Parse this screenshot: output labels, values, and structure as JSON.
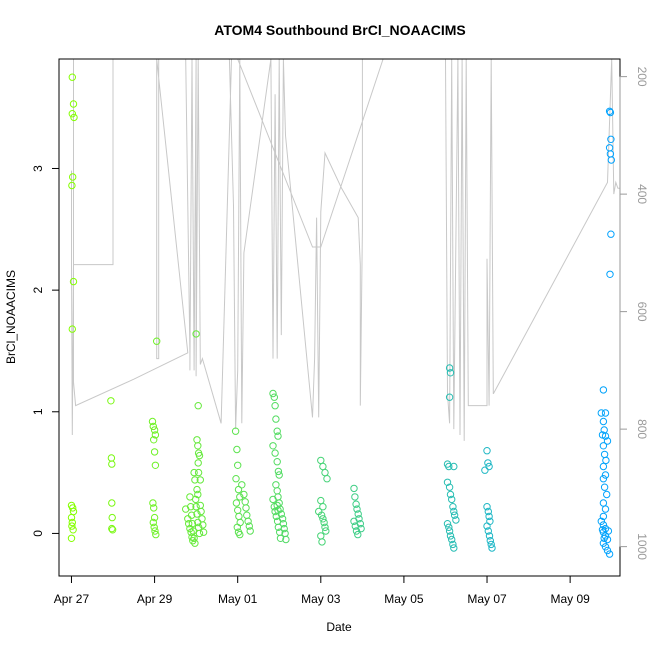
{
  "chart_data": {
    "type": "scatter",
    "title": "ATOM4 Southbound BrCl_NOAACIMS",
    "xlabel": "Date",
    "ylabel": "BrCl_NOAACIMS",
    "xlim": [
      -0.3,
      13.2
    ],
    "ylim": [
      -0.35,
      3.9
    ],
    "x_unit": "days since Apr 27",
    "x_ticks": [
      {
        "value": 0,
        "label": "Apr 27"
      },
      {
        "value": 2,
        "label": "Apr 29"
      },
      {
        "value": 4,
        "label": "May 01"
      },
      {
        "value": 6,
        "label": "May 03"
      },
      {
        "value": 8,
        "label": "May 05"
      },
      {
        "value": 10,
        "label": "May 07"
      },
      {
        "value": 12,
        "label": "May 09"
      }
    ],
    "y_ticks": [
      {
        "value": 0,
        "label": "0"
      },
      {
        "value": 1,
        "label": "1"
      },
      {
        "value": 2,
        "label": "2"
      },
      {
        "value": 3,
        "label": "3"
      }
    ],
    "right_axis": {
      "description": "altitude / pressure trace (grey line), inverted axis",
      "range": [
        1050,
        170
      ],
      "ticks": [
        {
          "value": 200,
          "label": "200"
        },
        {
          "value": 400,
          "label": "400"
        },
        {
          "value": 600,
          "label": "600"
        },
        {
          "value": 800,
          "label": "800"
        },
        {
          "value": 1000,
          "label": "1000"
        }
      ]
    },
    "color_scale": {
      "start": "#84ff00",
      "end": "#00a2ff"
    },
    "trace_color": "#c8c8c8",
    "trace": [
      [
        0.0,
        360
      ],
      [
        0.0,
        520
      ],
      [
        0.02,
        810
      ],
      [
        0.05,
        520
      ],
      [
        0.3,
        520
      ],
      [
        0.9,
        520
      ],
      [
        1.0,
        520
      ],
      [
        1.0,
        170
      ],
      [
        0.05,
        170
      ],
      [
        0.05,
        720
      ],
      [
        0.1,
        760
      ],
      [
        1.5,
        715
      ],
      [
        2.8,
        670
      ],
      [
        2.05,
        170
      ],
      [
        2.05,
        680
      ],
      [
        2.1,
        680
      ],
      [
        2.1,
        170
      ],
      [
        2.75,
        170
      ],
      [
        2.85,
        670
      ],
      [
        2.85,
        700
      ],
      [
        2.9,
        170
      ],
      [
        2.95,
        700
      ],
      [
        3.0,
        170
      ],
      [
        3.0,
        710
      ],
      [
        3.05,
        170
      ],
      [
        3.1,
        690
      ],
      [
        3.15,
        680
      ],
      [
        3.6,
        790
      ],
      [
        3.85,
        170
      ],
      [
        3.8,
        170
      ],
      [
        3.9,
        420
      ],
      [
        3.95,
        800
      ],
      [
        4.0,
        700
      ],
      [
        4.05,
        170
      ],
      [
        4.1,
        790
      ],
      [
        4.15,
        500
      ],
      [
        4.8,
        170
      ],
      [
        4.85,
        680
      ],
      [
        4.9,
        230
      ],
      [
        4.95,
        680
      ],
      [
        5.0,
        170
      ],
      [
        5.05,
        640
      ],
      [
        5.1,
        170
      ],
      [
        5.15,
        300
      ],
      [
        5.8,
        780
      ],
      [
        5.85,
        680
      ],
      [
        5.9,
        440
      ],
      [
        5.95,
        780
      ],
      [
        6.0,
        430
      ],
      [
        6.1,
        330
      ],
      [
        6.5,
        390
      ],
      [
        6.9,
        440
      ],
      [
        6.95,
        520
      ],
      [
        6.95,
        760
      ],
      [
        7.0,
        460
      ],
      [
        7.0,
        170
      ],
      [
        4.0,
        170
      ],
      [
        5.8,
        490
      ],
      [
        6.0,
        490
      ],
      [
        7.5,
        170
      ],
      [
        10.1,
        170
      ],
      [
        9.0,
        170
      ],
      [
        9.05,
        740
      ],
      [
        9.1,
        790
      ],
      [
        9.15,
        170
      ],
      [
        9.2,
        800
      ],
      [
        9.3,
        170
      ],
      [
        9.35,
        810
      ],
      [
        9.4,
        170
      ],
      [
        9.45,
        820
      ],
      [
        9.5,
        170
      ],
      [
        9.55,
        760
      ],
      [
        10.0,
        760
      ],
      [
        10.0,
        510
      ],
      [
        10.05,
        760
      ],
      [
        10.1,
        170
      ],
      [
        10.15,
        740
      ],
      [
        12.9,
        380
      ],
      [
        13.0,
        170
      ],
      [
        13.05,
        400
      ],
      [
        13.1,
        380
      ],
      [
        13.15,
        390
      ],
      [
        13.2,
        390
      ]
    ],
    "series": [
      {
        "name": "BrCl_NOAACIMS",
        "points": [
          [
            0.02,
            3.75
          ],
          [
            0.05,
            3.53
          ],
          [
            0.02,
            3.45
          ],
          [
            0.06,
            3.42
          ],
          [
            0.03,
            2.93
          ],
          [
            0.01,
            2.86
          ],
          [
            0.05,
            2.07
          ],
          [
            0.02,
            1.68
          ],
          [
            0.0,
            0.23
          ],
          [
            0.03,
            0.21
          ],
          [
            0.05,
            0.18
          ],
          [
            0.0,
            0.13
          ],
          [
            0.02,
            0.09
          ],
          [
            0.01,
            0.06
          ],
          [
            0.04,
            0.03
          ],
          [
            0.0,
            -0.04
          ],
          [
            0.95,
            1.09
          ],
          [
            0.96,
            0.62
          ],
          [
            0.97,
            0.57
          ],
          [
            0.97,
            0.25
          ],
          [
            0.98,
            0.13
          ],
          [
            0.97,
            0.04
          ],
          [
            0.99,
            0.03
          ],
          [
            2.05,
            1.58
          ],
          [
            1.95,
            0.92
          ],
          [
            1.97,
            0.88
          ],
          [
            2.0,
            0.85
          ],
          [
            2.02,
            0.81
          ],
          [
            1.98,
            0.77
          ],
          [
            2.0,
            0.67
          ],
          [
            2.02,
            0.56
          ],
          [
            1.96,
            0.25
          ],
          [
            1.98,
            0.21
          ],
          [
            2.0,
            0.13
          ],
          [
            1.97,
            0.09
          ],
          [
            1.99,
            0.05
          ],
          [
            2.01,
            0.02
          ],
          [
            2.03,
            -0.01
          ],
          [
            2.75,
            0.2
          ],
          [
            2.8,
            0.12
          ],
          [
            2.82,
            0.08
          ],
          [
            2.85,
            0.04
          ],
          [
            2.88,
            0.01
          ],
          [
            2.9,
            -0.03
          ],
          [
            2.92,
            -0.06
          ],
          [
            2.95,
            0.5
          ],
          [
            2.97,
            0.44
          ],
          [
            2.99,
            0.28
          ],
          [
            3.0,
            0.22
          ],
          [
            3.02,
            0.16
          ],
          [
            3.04,
            0.09
          ],
          [
            3.06,
            0.05
          ],
          [
            3.08,
            0.0
          ],
          [
            3.0,
            1.64
          ],
          [
            3.05,
            1.05
          ],
          [
            3.02,
            0.77
          ],
          [
            3.04,
            0.72
          ],
          [
            3.06,
            0.66
          ],
          [
            3.08,
            0.64
          ],
          [
            3.05,
            0.58
          ],
          [
            3.1,
            0.44
          ],
          [
            3.02,
            0.36
          ],
          [
            3.04,
            0.32
          ],
          [
            3.06,
            0.5
          ],
          [
            3.1,
            0.23
          ],
          [
            3.12,
            0.18
          ],
          [
            3.14,
            0.12
          ],
          [
            3.16,
            0.07
          ],
          [
            3.18,
            0.01
          ],
          [
            2.85,
            0.3
          ],
          [
            2.87,
            0.22
          ],
          [
            2.89,
            0.15
          ],
          [
            2.91,
            0.08
          ],
          [
            2.93,
            0.02
          ],
          [
            2.95,
            -0.04
          ],
          [
            2.97,
            -0.08
          ],
          [
            3.95,
            0.84
          ],
          [
            3.98,
            0.69
          ],
          [
            4.0,
            0.56
          ],
          [
            3.96,
            0.45
          ],
          [
            4.02,
            0.36
          ],
          [
            4.05,
            0.3
          ],
          [
            3.97,
            0.25
          ],
          [
            4.0,
            0.19
          ],
          [
            4.03,
            0.14
          ],
          [
            4.06,
            0.09
          ],
          [
            3.99,
            0.05
          ],
          [
            4.02,
            0.01
          ],
          [
            4.05,
            -0.01
          ],
          [
            4.1,
            0.4
          ],
          [
            4.15,
            0.32
          ],
          [
            4.18,
            0.26
          ],
          [
            4.2,
            0.21
          ],
          [
            4.22,
            0.15
          ],
          [
            4.25,
            0.1
          ],
          [
            4.28,
            0.06
          ],
          [
            4.3,
            0.02
          ],
          [
            4.85,
            1.15
          ],
          [
            4.88,
            1.12
          ],
          [
            4.9,
            1.05
          ],
          [
            4.92,
            0.94
          ],
          [
            4.95,
            0.84
          ],
          [
            4.97,
            0.8
          ],
          [
            4.85,
            0.72
          ],
          [
            4.9,
            0.66
          ],
          [
            4.95,
            0.59
          ],
          [
            4.98,
            0.51
          ],
          [
            5.0,
            0.48
          ],
          [
            4.92,
            0.4
          ],
          [
            4.95,
            0.35
          ],
          [
            4.97,
            0.3
          ],
          [
            5.0,
            0.25
          ],
          [
            5.02,
            0.2
          ],
          [
            4.85,
            0.28
          ],
          [
            4.88,
            0.22
          ],
          [
            4.9,
            0.18
          ],
          [
            4.93,
            0.14
          ],
          [
            4.96,
            0.1
          ],
          [
            4.98,
            0.05
          ],
          [
            5.01,
            0.01
          ],
          [
            5.03,
            -0.04
          ],
          [
            4.95,
            0.23
          ],
          [
            4.97,
            0.19
          ],
          [
            5.05,
            0.16
          ],
          [
            5.08,
            0.12
          ],
          [
            5.1,
            0.08
          ],
          [
            5.12,
            0.04
          ],
          [
            5.14,
            0.0
          ],
          [
            5.16,
            -0.05
          ],
          [
            6.0,
            0.6
          ],
          [
            6.05,
            0.55
          ],
          [
            6.1,
            0.5
          ],
          [
            6.15,
            0.45
          ],
          [
            6.0,
            0.27
          ],
          [
            6.05,
            0.22
          ],
          [
            5.95,
            0.18
          ],
          [
            6.02,
            0.15
          ],
          [
            6.05,
            0.12
          ],
          [
            6.08,
            0.09
          ],
          [
            6.1,
            0.05
          ],
          [
            6.12,
            0.02
          ],
          [
            6.0,
            -0.02
          ],
          [
            6.03,
            -0.07
          ],
          [
            6.8,
            0.37
          ],
          [
            6.82,
            0.3
          ],
          [
            6.85,
            0.24
          ],
          [
            6.87,
            0.2
          ],
          [
            6.9,
            0.16
          ],
          [
            6.92,
            0.12
          ],
          [
            6.95,
            0.08
          ],
          [
            6.97,
            0.04
          ],
          [
            6.8,
            0.1
          ],
          [
            6.83,
            0.06
          ],
          [
            6.86,
            0.02
          ],
          [
            6.89,
            -0.01
          ],
          [
            9.1,
            1.36
          ],
          [
            9.12,
            1.32
          ],
          [
            9.1,
            1.12
          ],
          [
            9.05,
            0.57
          ],
          [
            9.08,
            0.55
          ],
          [
            9.2,
            0.55
          ],
          [
            9.05,
            0.42
          ],
          [
            9.1,
            0.38
          ],
          [
            9.12,
            0.32
          ],
          [
            9.15,
            0.28
          ],
          [
            9.18,
            0.22
          ],
          [
            9.2,
            0.18
          ],
          [
            9.22,
            0.15
          ],
          [
            9.25,
            0.11
          ],
          [
            9.05,
            0.08
          ],
          [
            9.08,
            0.05
          ],
          [
            9.1,
            0.02
          ],
          [
            9.12,
            -0.02
          ],
          [
            9.15,
            -0.05
          ],
          [
            9.18,
            -0.09
          ],
          [
            9.2,
            -0.12
          ],
          [
            10.0,
            0.68
          ],
          [
            10.02,
            0.58
          ],
          [
            10.05,
            0.55
          ],
          [
            9.95,
            0.52
          ],
          [
            10.0,
            0.22
          ],
          [
            10.03,
            0.18
          ],
          [
            10.05,
            0.14
          ],
          [
            10.07,
            0.1
          ],
          [
            10.0,
            0.06
          ],
          [
            10.03,
            0.02
          ],
          [
            10.06,
            -0.02
          ],
          [
            10.08,
            -0.06
          ],
          [
            10.1,
            -0.09
          ],
          [
            10.12,
            -0.12
          ],
          [
            12.8,
            1.18
          ],
          [
            12.75,
            0.99
          ],
          [
            12.85,
            0.99
          ],
          [
            12.8,
            0.92
          ],
          [
            12.82,
            0.85
          ],
          [
            12.78,
            0.81
          ],
          [
            12.85,
            0.8
          ],
          [
            12.9,
            0.76
          ],
          [
            12.8,
            0.72
          ],
          [
            12.83,
            0.65
          ],
          [
            12.86,
            0.6
          ],
          [
            12.8,
            0.55
          ],
          [
            12.85,
            0.48
          ],
          [
            12.8,
            0.45
          ],
          [
            12.83,
            0.38
          ],
          [
            12.88,
            0.32
          ],
          [
            12.8,
            0.25
          ],
          [
            12.85,
            0.2
          ],
          [
            12.8,
            0.14
          ],
          [
            12.75,
            0.1
          ],
          [
            12.8,
            0.07
          ],
          [
            12.85,
            0.04
          ],
          [
            12.8,
            0.01
          ],
          [
            12.85,
            -0.02
          ],
          [
            12.9,
            -0.05
          ],
          [
            12.8,
            -0.08
          ],
          [
            12.85,
            -0.11
          ],
          [
            12.9,
            -0.14
          ],
          [
            12.95,
            -0.17
          ],
          [
            12.78,
            0.03
          ],
          [
            12.82,
            -0.04
          ],
          [
            12.92,
            0.02
          ],
          [
            12.95,
            3.47
          ],
          [
            12.97,
            3.46
          ],
          [
            12.98,
            3.24
          ],
          [
            12.95,
            3.17
          ],
          [
            12.97,
            3.12
          ],
          [
            12.99,
            3.07
          ],
          [
            12.98,
            2.46
          ],
          [
            12.96,
            2.13
          ]
        ]
      }
    ]
  }
}
